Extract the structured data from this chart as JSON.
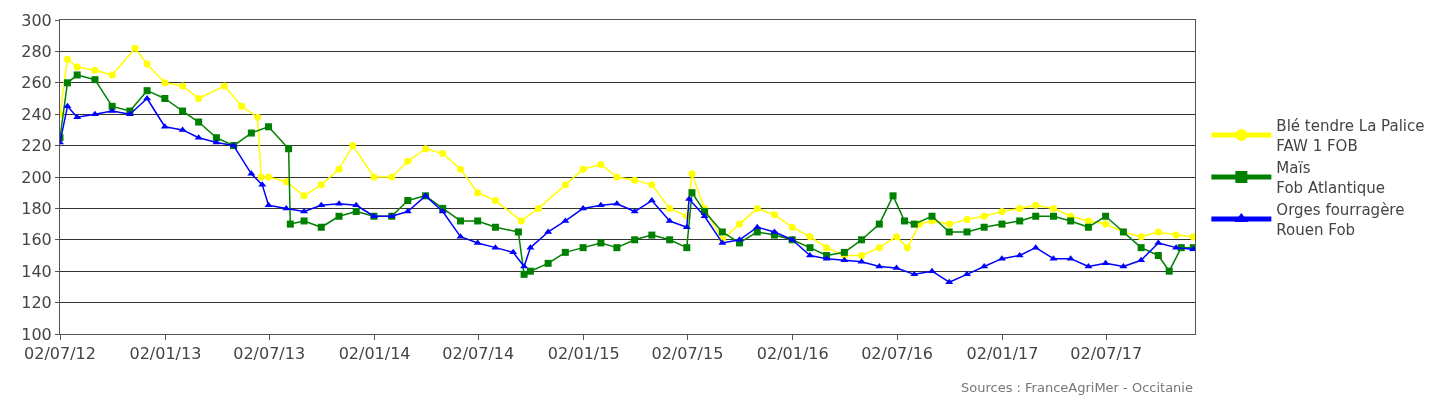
{
  "chart_data": {
    "type": "line",
    "xlim": [
      "2012-07-02",
      "2017-12-04"
    ],
    "xticks": [
      {
        "value": "2012-07-02",
        "label": "02/07/12"
      },
      {
        "value": "2013-01-02",
        "label": "02/01/13"
      },
      {
        "value": "2013-07-02",
        "label": "02/07/13"
      },
      {
        "value": "2014-01-02",
        "label": "02/01/14"
      },
      {
        "value": "2014-07-02",
        "label": "02/07/14"
      },
      {
        "value": "2015-01-02",
        "label": "02/01/15"
      },
      {
        "value": "2015-07-02",
        "label": "02/07/15"
      },
      {
        "value": "2016-01-02",
        "label": "02/01/16"
      },
      {
        "value": "2016-07-02",
        "label": "02/07/16"
      },
      {
        "value": "2017-01-02",
        "label": "02/01/17"
      },
      {
        "value": "2017-07-02",
        "label": "02/07/17"
      }
    ],
    "ylim": [
      100,
      300
    ],
    "yticks": [
      100,
      120,
      140,
      160,
      180,
      200,
      220,
      240,
      260,
      280,
      300
    ],
    "grid": "y",
    "legend": "right",
    "annotations": [
      "Sources : FranceAgriMer - Occitanie"
    ],
    "series": [
      {
        "name": "Blé tendre La Palice\nFAW 1 FOB",
        "color": "#ffff00",
        "marker": "circle",
        "x": [
          "2012-07-02",
          "2012-07-15",
          "2012-08-01",
          "2012-09-01",
          "2012-10-01",
          "2012-11-10",
          "2012-12-01",
          "2013-01-01",
          "2013-02-01",
          "2013-03-01",
          "2013-04-15",
          "2013-05-15",
          "2013-06-12",
          "2013-06-18",
          "2013-07-01",
          "2013-08-01",
          "2013-09-01",
          "2013-10-01",
          "2013-11-01",
          "2013-11-25",
          "2014-01-01",
          "2014-02-01",
          "2014-03-01",
          "2014-04-01",
          "2014-05-01",
          "2014-06-01",
          "2014-07-01",
          "2014-08-01",
          "2014-09-15",
          "2014-10-15",
          "2014-12-01",
          "2015-01-01",
          "2015-02-01",
          "2015-03-01",
          "2015-04-01",
          "2015-05-01",
          "2015-06-01",
          "2015-07-01",
          "2015-07-10",
          "2015-08-01",
          "2015-09-01",
          "2015-10-01",
          "2015-11-01",
          "2015-12-01",
          "2016-01-01",
          "2016-02-01",
          "2016-03-01",
          "2016-04-01",
          "2016-05-01",
          "2016-06-01",
          "2016-07-01",
          "2016-07-20",
          "2016-08-10",
          "2016-09-01",
          "2016-10-01",
          "2016-11-01",
          "2016-12-01",
          "2017-01-01",
          "2017-02-01",
          "2017-03-01",
          "2017-04-01",
          "2017-05-01",
          "2017-06-01",
          "2017-07-01",
          "2017-08-01",
          "2017-09-01",
          "2017-10-01",
          "2017-11-01",
          "2017-12-01"
        ],
        "values": [
          240,
          275,
          270,
          268,
          265,
          282,
          272,
          260,
          258,
          250,
          258,
          245,
          238,
          200,
          200,
          197,
          188,
          195,
          205,
          220,
          200,
          200,
          210,
          218,
          215,
          205,
          190,
          185,
          172,
          180,
          195,
          205,
          208,
          200,
          198,
          195,
          180,
          175,
          202,
          180,
          160,
          170,
          180,
          176,
          168,
          162,
          155,
          150,
          150,
          155,
          162,
          155,
          170,
          172,
          170,
          173,
          175,
          178,
          180,
          182,
          180,
          175,
          172,
          170,
          165,
          162,
          165,
          163,
          162
        ]
      },
      {
        "name": "Maïs\nFob Atlantique",
        "color": "#008000",
        "marker": "square",
        "x": [
          "2012-07-02",
          "2012-07-15",
          "2012-08-01",
          "2012-09-01",
          "2012-10-01",
          "2012-11-01",
          "2012-12-01",
          "2013-01-01",
          "2013-02-01",
          "2013-03-01",
          "2013-04-01",
          "2013-05-01",
          "2013-06-01",
          "2013-07-01",
          "2013-08-05",
          "2013-08-08",
          "2013-09-01",
          "2013-10-01",
          "2013-11-01",
          "2013-12-01",
          "2014-01-01",
          "2014-02-01",
          "2014-03-01",
          "2014-04-01",
          "2014-05-01",
          "2014-06-01",
          "2014-07-01",
          "2014-08-01",
          "2014-09-10",
          "2014-09-20",
          "2014-10-01",
          "2014-11-01",
          "2014-12-01",
          "2015-01-01",
          "2015-02-01",
          "2015-03-01",
          "2015-04-01",
          "2015-05-01",
          "2015-06-01",
          "2015-07-01",
          "2015-07-10",
          "2015-08-01",
          "2015-09-01",
          "2015-10-01",
          "2015-11-01",
          "2015-12-01",
          "2016-01-01",
          "2016-02-01",
          "2016-03-01",
          "2016-04-01",
          "2016-05-01",
          "2016-06-01",
          "2016-06-25",
          "2016-07-15",
          "2016-08-01",
          "2016-09-01",
          "2016-10-01",
          "2016-11-01",
          "2016-12-01",
          "2017-01-01",
          "2017-02-01",
          "2017-03-01",
          "2017-04-01",
          "2017-05-01",
          "2017-06-01",
          "2017-07-01",
          "2017-08-01",
          "2017-09-01",
          "2017-10-01",
          "2017-10-20",
          "2017-11-10",
          "2017-12-01"
        ],
        "values": [
          225,
          260,
          265,
          262,
          245,
          242,
          255,
          250,
          242,
          235,
          225,
          220,
          228,
          232,
          218,
          170,
          172,
          168,
          175,
          178,
          175,
          175,
          185,
          188,
          180,
          172,
          172,
          168,
          165,
          138,
          140,
          145,
          152,
          155,
          158,
          155,
          160,
          163,
          160,
          155,
          190,
          178,
          165,
          158,
          165,
          163,
          160,
          155,
          150,
          152,
          160,
          170,
          188,
          172,
          170,
          175,
          165,
          165,
          168,
          170,
          172,
          175,
          175,
          172,
          168,
          175,
          165,
          155,
          150,
          140,
          155,
          155
        ]
      },
      {
        "name": "Orges fourragère\nRouen Fob",
        "color": "#0000ff",
        "marker": "triangle",
        "x": [
          "2012-07-02",
          "2012-07-15",
          "2012-08-01",
          "2012-09-01",
          "2012-10-01",
          "2012-11-01",
          "2012-12-01",
          "2013-01-01",
          "2013-02-01",
          "2013-03-01",
          "2013-04-01",
          "2013-05-01",
          "2013-06-01",
          "2013-06-20",
          "2013-07-01",
          "2013-08-01",
          "2013-09-01",
          "2013-10-01",
          "2013-11-01",
          "2013-12-01",
          "2014-01-01",
          "2014-02-01",
          "2014-03-01",
          "2014-04-01",
          "2014-05-01",
          "2014-06-01",
          "2014-07-01",
          "2014-08-01",
          "2014-09-01",
          "2014-09-20",
          "2014-10-01",
          "2014-11-01",
          "2014-12-01",
          "2015-01-01",
          "2015-02-01",
          "2015-03-01",
          "2015-04-01",
          "2015-05-01",
          "2015-06-01",
          "2015-07-01",
          "2015-07-05",
          "2015-08-01",
          "2015-09-01",
          "2015-10-01",
          "2015-11-01",
          "2015-12-01",
          "2016-01-01",
          "2016-02-01",
          "2016-03-01",
          "2016-04-01",
          "2016-05-01",
          "2016-06-01",
          "2016-07-01",
          "2016-08-01",
          "2016-09-01",
          "2016-10-01",
          "2016-11-01",
          "2016-12-01",
          "2017-01-01",
          "2017-02-01",
          "2017-03-01",
          "2017-04-01",
          "2017-05-01",
          "2017-06-01",
          "2017-07-01",
          "2017-08-01",
          "2017-09-01",
          "2017-10-01",
          "2017-11-01",
          "2017-12-01"
        ],
        "values": [
          222,
          245,
          238,
          240,
          242,
          240,
          250,
          232,
          230,
          225,
          222,
          220,
          202,
          195,
          182,
          180,
          178,
          182,
          183,
          182,
          175,
          175,
          178,
          188,
          178,
          162,
          158,
          155,
          152,
          143,
          155,
          165,
          172,
          180,
          182,
          183,
          178,
          185,
          172,
          168,
          186,
          175,
          158,
          160,
          168,
          165,
          160,
          150,
          148,
          147,
          146,
          143,
          142,
          138,
          140,
          133,
          138,
          143,
          148,
          150,
          155,
          148,
          148,
          143,
          145,
          143,
          147,
          158,
          155,
          154
        ]
      }
    ]
  }
}
